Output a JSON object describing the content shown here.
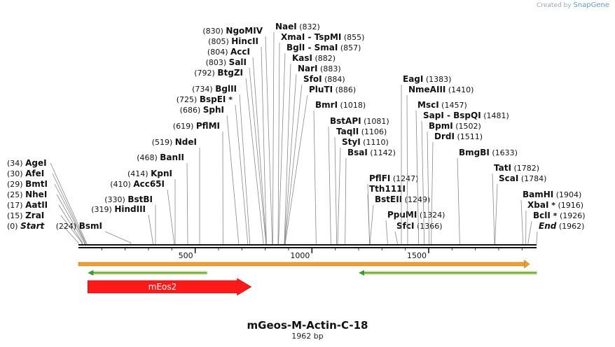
{
  "credit": {
    "prefix": "Created by",
    "brand": "SnapGene"
  },
  "plasmid": {
    "name": "mGeos-M-Actin-C-18",
    "length_label": "1962 bp",
    "length": 1962
  },
  "ruler": {
    "ticks": [
      {
        "pos": 500,
        "label": "500"
      },
      {
        "pos": 1000,
        "label": "1000"
      },
      {
        "pos": 1500,
        "label": "1500"
      }
    ]
  },
  "left_sites": [
    {
      "pos": "(0)",
      "name": "Start",
      "loc": 0,
      "italic": true
    },
    {
      "pos": "(15)",
      "name": "ZraI",
      "loc": 15
    },
    {
      "pos": "(17)",
      "name": "AatII",
      "loc": 17
    },
    {
      "pos": "(25)",
      "name": "NheI",
      "loc": 25
    },
    {
      "pos": "(29)",
      "name": "BmtI",
      "loc": 29
    },
    {
      "pos": "(30)",
      "name": "AfeI",
      "loc": 30
    },
    {
      "pos": "(34)",
      "name": "AgeI",
      "loc": 34
    }
  ],
  "top_sites": [
    {
      "pos": "(224)",
      "name": "BsmI",
      "loc": 224
    },
    {
      "pos": "(319)",
      "name": "HindIII",
      "loc": 319
    },
    {
      "pos": "(330)",
      "name": "BstBI",
      "loc": 330
    },
    {
      "pos": "(410)",
      "name": "Acc65I",
      "loc": 410
    },
    {
      "pos": "(414)",
      "name": "KpnI",
      "loc": 414
    },
    {
      "pos": "(468)",
      "name": "BanII",
      "loc": 468
    },
    {
      "pos": "(519)",
      "name": "NdeI",
      "loc": 519
    },
    {
      "pos": "(619)",
      "name": "PflMI",
      "loc": 619
    },
    {
      "pos": "(686)",
      "name": "SphI",
      "loc": 686
    },
    {
      "pos": "(725)",
      "name": "BspEI",
      "star": true,
      "loc": 725
    },
    {
      "pos": "(734)",
      "name": "BglII",
      "loc": 734
    },
    {
      "pos": "(792)",
      "name": "BtgZI",
      "loc": 792
    },
    {
      "pos": "(803)",
      "name": "SalI",
      "loc": 803
    },
    {
      "pos": "(804)",
      "name": "AccI",
      "loc": 804
    },
    {
      "pos": "(805)",
      "name": "HincII",
      "loc": 805
    },
    {
      "pos": "(830)",
      "name": "NgoMIV",
      "loc": 830
    }
  ],
  "right_top_sites": [
    {
      "pos": "(832)",
      "name": "NaeI",
      "loc": 832
    },
    {
      "pos": "(855)",
      "name": "XmaI  - TspMI",
      "loc": 855
    },
    {
      "pos": "(857)",
      "name": "BglI  - SmaI",
      "loc": 857
    },
    {
      "pos": "(882)",
      "name": "KasI",
      "loc": 882
    },
    {
      "pos": "(883)",
      "name": "NarI",
      "loc": 883
    },
    {
      "pos": "(884)",
      "name": "SfoI",
      "loc": 884
    },
    {
      "pos": "(886)",
      "name": "PluTI",
      "loc": 886
    },
    {
      "pos": "(1018)",
      "name": "BmrI",
      "loc": 1018
    },
    {
      "pos": "(1081)",
      "name": "BstAPI",
      "loc": 1081
    },
    {
      "pos": "(1106)",
      "name": "TaqII",
      "loc": 1106
    },
    {
      "pos": "(1110)",
      "name": "StyI",
      "loc": 1110
    },
    {
      "pos": "(1142)",
      "name": "BsaI",
      "loc": 1142
    },
    {
      "pos": "(1247)",
      "name": "PflFI",
      "loc": 1247
    },
    {
      "pos": "",
      "name": "Tth111I",
      "loc": 1247
    },
    {
      "pos": "(1249)",
      "name": "BstEII",
      "loc": 1249
    },
    {
      "pos": "(1324)",
      "name": "PpuMI",
      "loc": 1324
    },
    {
      "pos": "(1366)",
      "name": "SfcI",
      "loc": 1366
    },
    {
      "pos": "(1383)",
      "name": "EagI",
      "loc": 1383
    },
    {
      "pos": "(1410)",
      "name": "NmeAIII",
      "loc": 1410
    },
    {
      "pos": "(1457)",
      "name": "MscI",
      "loc": 1457
    },
    {
      "pos": "(1481)",
      "name": "SapI  - BspQI",
      "loc": 1481
    },
    {
      "pos": "(1502)",
      "name": "BpmI",
      "loc": 1502
    },
    {
      "pos": "(1511)",
      "name": "DrdI",
      "loc": 1511
    },
    {
      "pos": "(1633)",
      "name": "BmgBI",
      "loc": 1633
    },
    {
      "pos": "(1782)",
      "name": "TatI",
      "loc": 1782
    },
    {
      "pos": "(1784)",
      "name": "ScaI",
      "loc": 1784
    },
    {
      "pos": "(1904)",
      "name": "BamHI",
      "loc": 1904
    },
    {
      "pos": "(1916)",
      "name": "XbaI",
      "star": true,
      "loc": 1916
    },
    {
      "pos": "(1926)",
      "name": "BclI",
      "star": true,
      "loc": 1926
    },
    {
      "pos": "(1962)",
      "name": "End",
      "italic": true,
      "loc": 1962
    }
  ],
  "features": [
    {
      "name": "",
      "type": "orange-bar",
      "start": 0,
      "end": 1910,
      "color": "#f0a030"
    },
    {
      "name": "",
      "type": "green-arrow-left",
      "start": 40,
      "end": 550,
      "color": "#3a9a2a"
    },
    {
      "name": "",
      "type": "green-arrow-left",
      "start": 1200,
      "end": 1962,
      "color": "#3a9a2a"
    },
    {
      "name": "mEos2",
      "type": "red-arrow-right",
      "start": 40,
      "end": 740,
      "color": "#ff1a1a"
    }
  ]
}
